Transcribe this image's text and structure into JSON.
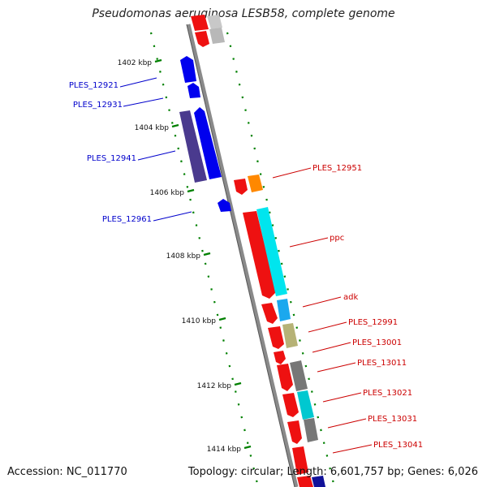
{
  "title": "Pseudomonas aeruginosa LESB58, complete genome",
  "footer": {
    "accession": "Accession: NC_011770",
    "summary": "Topology: circular; Length: 6,601,757 bp; Genes: 6,026"
  },
  "colors": {
    "backbone": "#8a8a8a",
    "tick": "#008000",
    "label_left": "#0000cc",
    "label_right": "#cc0000"
  },
  "scale_labels": [
    "1402 kbp",
    "1404 kbp",
    "1406 kbp",
    "1408 kbp",
    "1410 kbp",
    "1412 kbp",
    "1414 kbp"
  ],
  "left_labels": [
    "PLES_12921",
    "PLES_12931",
    "PLES_12941",
    "PLES_12961"
  ],
  "right_labels": [
    "PLES_12951",
    "ppc",
    "adk",
    "PLES_12991",
    "PLES_13001",
    "PLES_13011",
    "PLES_13021",
    "PLES_13031",
    "PLES_13041"
  ]
}
